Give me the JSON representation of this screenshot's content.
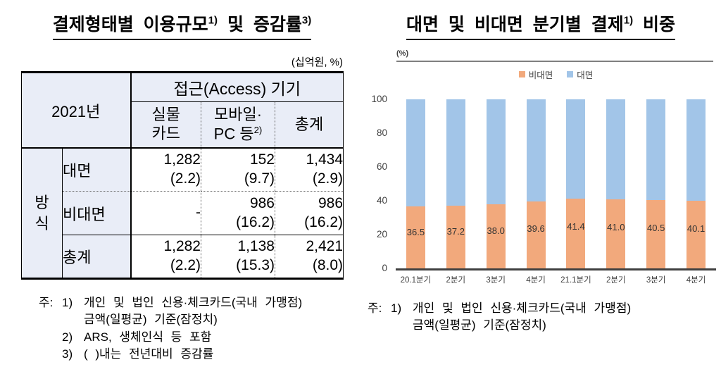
{
  "colors": {
    "header_fill": "#E9EDF7",
    "nonface_bar": "#F2A97C",
    "face_bar": "#A2C5E8",
    "axis": "#404040"
  },
  "left_panel": {
    "title": {
      "main": "결제형태별 이용규모",
      "sup_a": "1)",
      "rest": " 및 증감률",
      "sup_b": "3)"
    },
    "unit_label": "(십억원, %)",
    "table": {
      "year_label": "2021년",
      "access_header": "접근(Access) 기기",
      "col_headers": [
        {
          "line1": "실물",
          "line2": "카드",
          "sup": ""
        },
        {
          "line1": "모바일·",
          "line2": "PC 등",
          "sup": "2)"
        },
        {
          "line1": "총계",
          "line2": "",
          "sup": ""
        }
      ],
      "row_group_label": "방식",
      "rows": [
        {
          "label": "대면",
          "cells": [
            {
              "value": "1,282",
              "change": "(2.2)"
            },
            {
              "value": "152",
              "change": "(9.7)"
            },
            {
              "value": "1,434",
              "change": "(2.9)"
            }
          ]
        },
        {
          "label": "비대면",
          "cells": [
            {
              "value": "-",
              "change": ""
            },
            {
              "value": "986",
              "change": "(16.2)"
            },
            {
              "value": "986",
              "change": "(16.2)"
            }
          ]
        },
        {
          "label": "총계",
          "cells": [
            {
              "value": "1,282",
              "change": "(2.2)"
            },
            {
              "value": "1,138",
              "change": "(15.3)"
            },
            {
              "value": "2,421",
              "change": "(8.0)"
            }
          ]
        }
      ]
    },
    "footnotes": {
      "prefix": "주:",
      "items": [
        {
          "num": "1)",
          "lines": [
            "개인 및 법인 신용·체크카드(국내 가맹점)",
            "금액(일평균) 기준(잠정치)"
          ]
        },
        {
          "num": "2)",
          "lines": [
            "ARS, 생체인식 등 포함",
            ""
          ]
        },
        {
          "num": "3)",
          "lines": [
            "( )내는 전년대비 증감률",
            ""
          ]
        }
      ]
    }
  },
  "right_panel": {
    "title": {
      "main": "대면 및 비대면 분기별 결제",
      "sup_a": "1)",
      "rest": " 비중"
    },
    "footnotes": {
      "prefix": "주:",
      "items": [
        {
          "num": "1)",
          "lines": [
            "개인 및 법인 신용·체크카드(국내 가맹점)",
            "금액(일평균) 기준(잠정치)"
          ]
        }
      ]
    }
  },
  "chart_data": {
    "type": "bar",
    "stacked": true,
    "title": "대면 및 비대면 분기별 결제1) 비중",
    "unit": "(%)",
    "categories": [
      "20.1분기",
      "2분기",
      "3분기",
      "4분기",
      "21.1분기",
      "2분기",
      "3분기",
      "4분기"
    ],
    "series": [
      {
        "name": "비대면",
        "color": "#F2A97C",
        "values": [
          36.5,
          37.2,
          38.0,
          39.6,
          41.4,
          41.0,
          40.5,
          40.1
        ]
      },
      {
        "name": "대면",
        "color": "#A2C5E8",
        "values": [
          63.5,
          62.8,
          62.0,
          60.4,
          58.6,
          59.0,
          59.5,
          59.9
        ]
      }
    ],
    "data_labels": [
      "36.5",
      "37.2",
      "38.0",
      "39.6",
      "41.4",
      "41.0",
      "40.5",
      "40.1"
    ],
    "ylim": [
      0,
      100
    ],
    "yticks": [
      0,
      20,
      40,
      60,
      80,
      100
    ],
    "grid": false,
    "legend_position": "top"
  }
}
